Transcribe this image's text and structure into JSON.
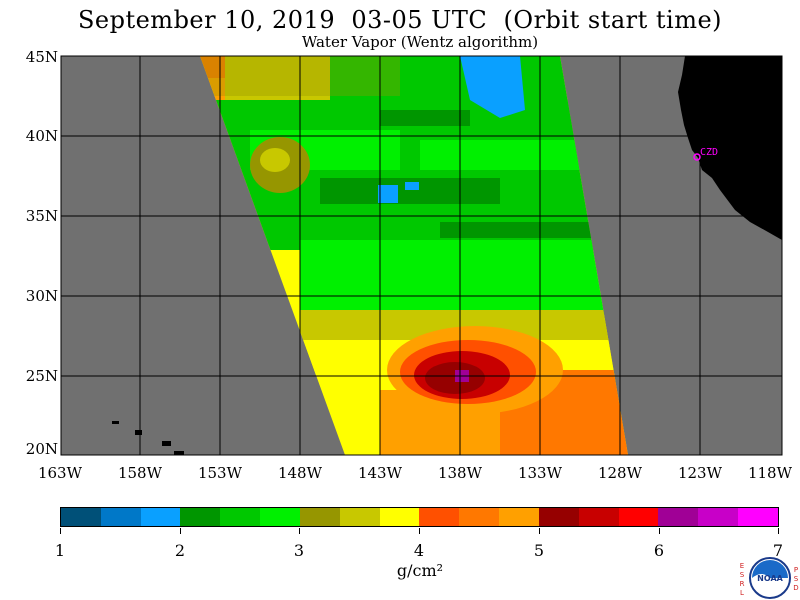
{
  "title": "September 10, 2019  03-05 UTC  (Orbit start time)",
  "subtitle": "Water Vapor (Wentz algorithm)",
  "map": {
    "lat_range": [
      20,
      45
    ],
    "lon_range": [
      -163,
      -118
    ],
    "lat_labels": [
      "45N",
      "40N",
      "35N",
      "30N",
      "25N",
      "20N"
    ],
    "lon_labels": [
      "163W",
      "158W",
      "153W",
      "148W",
      "143W",
      "138W",
      "133W",
      "128W",
      "123W",
      "118W"
    ],
    "station_label": "CZD",
    "colors": {
      "no_data": "#707070",
      "land": "#000000",
      "grid": "#000000",
      "station": "#ff00ff"
    }
  },
  "colorbar": {
    "tick_labels": [
      "1",
      "2",
      "3",
      "4",
      "5",
      "6",
      "7"
    ],
    "unit": "g/cm²",
    "colors": [
      "#005078",
      "#0078c8",
      "#0aa0ff",
      "#009600",
      "#00c800",
      "#00f000",
      "#969600",
      "#c8c800",
      "#ffff00",
      "#ff5000",
      "#ff7800",
      "#ffa000",
      "#960000",
      "#c80000",
      "#ff0000",
      "#a00096",
      "#c800c8",
      "#ff00ff"
    ]
  },
  "logo": {
    "left_letters": [
      "E",
      "S",
      "R",
      "L"
    ],
    "right_letters": [
      "P",
      "S",
      "D"
    ],
    "emblem_text": "NOAA"
  }
}
